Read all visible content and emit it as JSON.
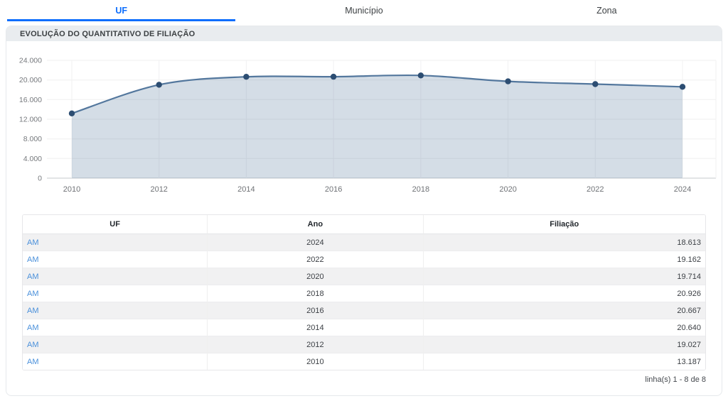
{
  "tabs": [
    {
      "label": "UF",
      "active": true
    },
    {
      "label": "Município",
      "active": false
    },
    {
      "label": "Zona",
      "active": false
    }
  ],
  "panel": {
    "title": "EVOLUÇÃO DO QUANTITATIVO DE FILIAÇÃO"
  },
  "chart_data": {
    "type": "area",
    "title": "EVOLUÇÃO DO QUANTITATIVO DE FILIAÇÃO",
    "x": [
      2010,
      2012,
      2014,
      2016,
      2018,
      2020,
      2022,
      2024
    ],
    "series": [
      {
        "name": "Filiação",
        "values": [
          13187,
          19027,
          20640,
          20667,
          20926,
          19714,
          19162,
          18613
        ]
      }
    ],
    "xlabel": "",
    "ylabel": "",
    "ylim": [
      0,
      24000
    ],
    "yticks": [
      {
        "value": 0,
        "label": "0"
      },
      {
        "value": 4000,
        "label": "4.000"
      },
      {
        "value": 8000,
        "label": "8.000"
      },
      {
        "value": 12000,
        "label": "12.000"
      },
      {
        "value": 16000,
        "label": "16.000"
      },
      {
        "value": 20000,
        "label": "20.000"
      },
      {
        "value": 24000,
        "label": "24.000"
      }
    ],
    "grid": true,
    "legend": "none",
    "colors": {
      "line": "#53779d",
      "marker": "#2c4d72",
      "area_fill": "rgba(83,119,157,0.25)",
      "gridline": "#f0f0f2",
      "axis": "#c4c8cd",
      "tick_text": "#76797d"
    }
  },
  "table": {
    "headers": [
      "UF",
      "Ano",
      "Filiação"
    ],
    "rows": [
      {
        "uf": "AM",
        "ano": "2024",
        "filiacao": "18.613"
      },
      {
        "uf": "AM",
        "ano": "2022",
        "filiacao": "19.162"
      },
      {
        "uf": "AM",
        "ano": "2020",
        "filiacao": "19.714"
      },
      {
        "uf": "AM",
        "ano": "2018",
        "filiacao": "20.926"
      },
      {
        "uf": "AM",
        "ano": "2016",
        "filiacao": "20.667"
      },
      {
        "uf": "AM",
        "ano": "2014",
        "filiacao": "20.640"
      },
      {
        "uf": "AM",
        "ano": "2012",
        "filiacao": "19.027"
      },
      {
        "uf": "AM",
        "ano": "2010",
        "filiacao": "13.187"
      }
    ]
  },
  "pagination": {
    "label": "linha(s) 1 - 8 de 8"
  },
  "colors": {
    "accent": "#0d6efd",
    "link": "#4a90db",
    "header_bg": "#e9ecef"
  }
}
